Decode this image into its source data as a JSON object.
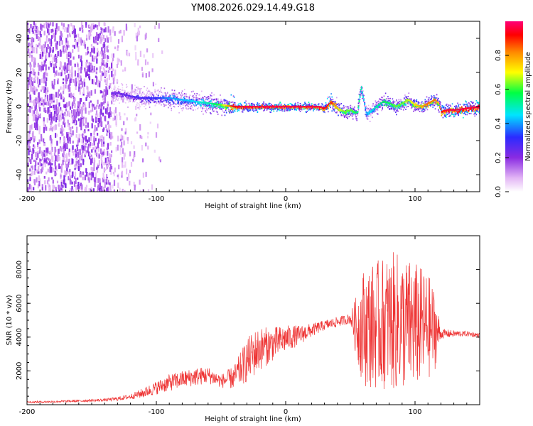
{
  "title": "YM08.2026.029.14.49.G18",
  "chart_data": [
    {
      "type": "heatmap",
      "xlabel": "Height of straight line (km)",
      "ylabel": "Frequency (Hz)",
      "xlim": [
        -200,
        150
      ],
      "ylim": [
        -50,
        50
      ],
      "x_ticks": [
        -200,
        -100,
        0,
        100
      ],
      "y_ticks": [
        -40,
        -20,
        0,
        20,
        40
      ],
      "colorbar": {
        "label": "Normalized spectral amplitude",
        "range": [
          0,
          1
        ],
        "ticks": [
          0,
          0.2,
          0.4,
          0.6,
          0.8
        ],
        "colormap": [
          "#ffffff",
          "#e3b6f5",
          "#8a2be2",
          "#2b2bff",
          "#00e5ff",
          "#00ff44",
          "#ffff00",
          "#ff8800",
          "#ff0000",
          "#ff0077"
        ]
      },
      "ridge": {
        "x": [
          -130,
          -120,
          -110,
          -100,
          -90,
          -80,
          -70,
          -60,
          -50,
          -40,
          -30,
          -20,
          -10,
          0,
          10,
          20,
          25,
          30,
          35,
          40,
          45,
          50,
          55,
          58,
          60,
          62,
          65,
          70,
          75,
          80,
          85,
          90,
          95,
          100,
          105,
          110,
          115,
          118,
          120,
          125,
          130,
          140,
          150
        ],
        "y": [
          8,
          6,
          5,
          5,
          5,
          4,
          3,
          2,
          1,
          0,
          0,
          0,
          0,
          0,
          0,
          0,
          0,
          -1,
          3,
          -1,
          -3,
          -2,
          -4,
          12,
          4,
          -4,
          -3,
          0,
          3,
          2,
          0,
          2,
          4,
          1,
          0,
          2,
          4,
          2,
          -3,
          -2,
          -2,
          -1,
          0
        ],
        "amplitude": [
          0.25,
          0.28,
          0.3,
          0.33,
          0.4,
          0.42,
          0.45,
          0.5,
          0.6,
          0.9,
          0.95,
          0.95,
          0.95,
          0.95,
          0.95,
          0.95,
          0.95,
          0.9,
          0.85,
          0.7,
          0.6,
          0.6,
          0.55,
          0.5,
          0.45,
          0.4,
          0.45,
          0.5,
          0.55,
          0.55,
          0.6,
          0.6,
          0.65,
          0.7,
          0.75,
          0.8,
          0.8,
          0.7,
          0.9,
          0.95,
          0.95,
          0.95,
          0.95
        ]
      },
      "noise_region": {
        "x_start": -200,
        "x_end": -95,
        "dense_until": -135
      }
    },
    {
      "type": "line",
      "xlabel": "Height of straight line (km)",
      "ylabel": "SNR (10 * v/v)",
      "xlim": [
        -200,
        150
      ],
      "ylim": [
        0,
        10000
      ],
      "x_ticks": [
        -200,
        -100,
        0,
        100
      ],
      "y_ticks": [
        2000,
        4000,
        6000,
        8000
      ],
      "line_color": "#ee3333",
      "series": [
        {
          "x": [
            -200,
            -180,
            -160,
            -140,
            -130,
            -120,
            -110,
            -100,
            -90,
            -80,
            -70,
            -60,
            -50,
            -40,
            -30,
            -25,
            -20,
            -10,
            0,
            10,
            20,
            30,
            40,
            50,
            55,
            60,
            70,
            80,
            85,
            90,
            100,
            110,
            115,
            120,
            130,
            140,
            150
          ],
          "mean": [
            150,
            180,
            220,
            280,
            350,
            480,
            700,
            1000,
            1300,
            1500,
            1650,
            1750,
            1400,
            1600,
            2600,
            3000,
            3300,
            3600,
            3900,
            4100,
            4400,
            4700,
            4900,
            5100,
            4600,
            4600,
            4700,
            4900,
            4900,
            4800,
            4700,
            4600,
            4400,
            4200,
            4200,
            4200,
            4100
          ],
          "amplitude": [
            60,
            60,
            70,
            80,
            120,
            150,
            300,
            400,
            500,
            500,
            550,
            500,
            400,
            700,
            1300,
            1400,
            1300,
            1000,
            800,
            600,
            400,
            300,
            300,
            300,
            2000,
            3500,
            3800,
            4000,
            4200,
            4000,
            3800,
            3200,
            2500,
            300,
            200,
            150,
            150
          ]
        }
      ]
    }
  ]
}
